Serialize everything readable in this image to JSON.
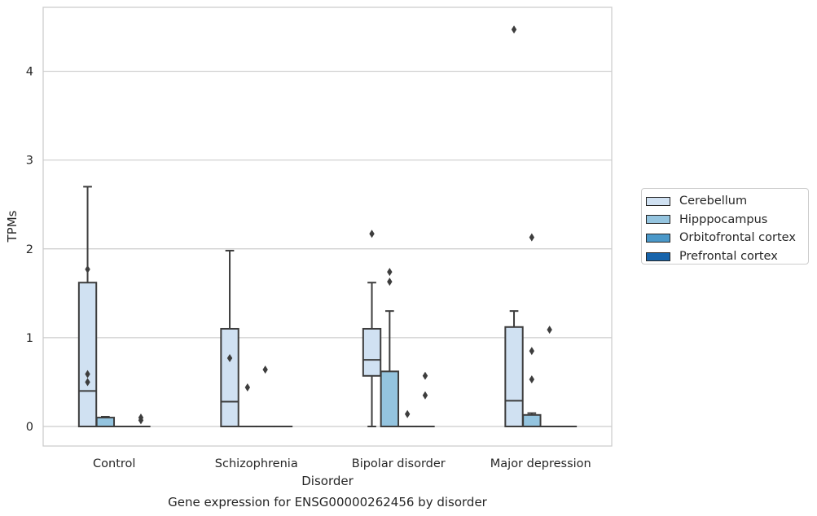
{
  "chart_data": {
    "type": "box",
    "title": "Gene expression for ENSG00000262456 by disorder",
    "xlabel": "Disorder",
    "ylabel": "TPMs",
    "ylim": [
      -0.22,
      4.72
    ],
    "yticks": [
      0,
      1,
      2,
      3,
      4
    ],
    "grid": true,
    "legend_position": "right",
    "categories": [
      "Control",
      "Schizophrenia",
      "Bipolar disorder",
      "Major depression"
    ],
    "series": [
      {
        "name": "Cerebellum",
        "color": "#d0e1f2",
        "boxes": [
          {
            "q1": 0,
            "median": 0.4,
            "q3": 1.62,
            "whislo": 0,
            "whishi": 2.7,
            "fliers": [
              1.77,
              0.59,
              0.5
            ]
          },
          {
            "q1": 0,
            "median": 0.28,
            "q3": 1.1,
            "whislo": 0,
            "whishi": 1.98,
            "fliers": [
              0.77
            ]
          },
          {
            "q1": 0.57,
            "median": 0.75,
            "q3": 1.1,
            "whislo": 0,
            "whishi": 1.62,
            "fliers": [
              2.17
            ]
          },
          {
            "q1": 0,
            "median": 0.29,
            "q3": 1.12,
            "whislo": 0,
            "whishi": 1.3,
            "fliers": [
              4.47
            ]
          }
        ]
      },
      {
        "name": "Hipppocampus",
        "color": "#94c4df",
        "boxes": [
          {
            "q1": 0,
            "median": 0,
            "q3": 0.1,
            "whislo": 0,
            "whishi": 0.11,
            "fliers": []
          },
          {
            "q1": 0,
            "median": 0,
            "q3": 0,
            "whislo": 0,
            "whishi": 0,
            "fliers": [
              0.44
            ]
          },
          {
            "q1": 0,
            "median": 0,
            "q3": 0.62,
            "whislo": 0,
            "whishi": 1.3,
            "fliers": [
              1.74,
              1.63
            ]
          },
          {
            "q1": 0,
            "median": 0,
            "q3": 0.13,
            "whislo": 0,
            "whishi": 0.15,
            "fliers": [
              2.13,
              0.85,
              0.53
            ]
          }
        ]
      },
      {
        "name": "Orbitofrontal cortex",
        "color": "#4a98c9",
        "boxes": [
          {
            "q1": 0,
            "median": 0,
            "q3": 0,
            "whislo": 0,
            "whishi": 0,
            "fliers": []
          },
          {
            "q1": 0,
            "median": 0,
            "q3": 0,
            "whislo": 0,
            "whishi": 0,
            "fliers": [
              0.64
            ]
          },
          {
            "q1": 0,
            "median": 0,
            "q3": 0,
            "whislo": 0,
            "whishi": 0,
            "fliers": [
              0.14
            ]
          },
          {
            "q1": 0,
            "median": 0,
            "q3": 0,
            "whislo": 0,
            "whishi": 0,
            "fliers": [
              1.09
            ]
          }
        ]
      },
      {
        "name": "Prefrontal cortex",
        "color": "#1764ab",
        "boxes": [
          {
            "q1": 0,
            "median": 0,
            "q3": 0,
            "whislo": 0,
            "whishi": 0,
            "fliers": [
              0.1,
              0.07
            ]
          },
          {
            "q1": 0,
            "median": 0,
            "q3": 0,
            "whislo": 0,
            "whishi": 0,
            "fliers": []
          },
          {
            "q1": 0,
            "median": 0,
            "q3": 0,
            "whislo": 0,
            "whishi": 0,
            "fliers": [
              0.57,
              0.35
            ]
          },
          {
            "q1": 0,
            "median": 0,
            "q3": 0,
            "whislo": 0,
            "whishi": 0,
            "fliers": []
          }
        ]
      }
    ]
  }
}
